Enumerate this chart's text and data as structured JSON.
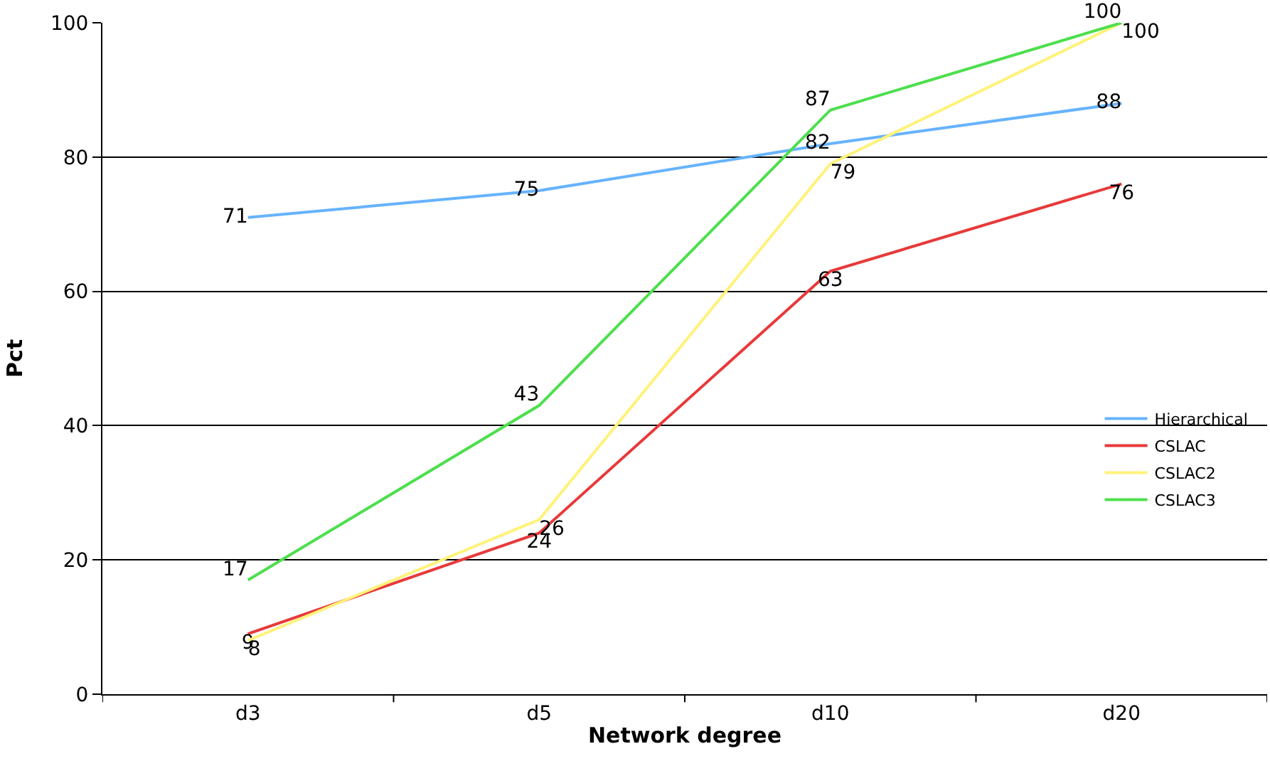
{
  "chart_data": {
    "type": "line",
    "xlabel": "Network degree",
    "ylabel": "Pct",
    "categories": [
      "d3",
      "d5",
      "d10",
      "d20"
    ],
    "series": [
      {
        "name": "Hierarchical",
        "color": "#66b3ff",
        "values": [
          71,
          75,
          82,
          88
        ]
      },
      {
        "name": "CSLAC",
        "color": "#e8393a",
        "values": [
          9,
          24,
          63,
          76
        ]
      },
      {
        "name": "CSLAC2",
        "color": "#fff27a",
        "values": [
          8,
          26,
          79,
          100
        ]
      },
      {
        "name": "CSLAC3",
        "color": "#4ddf4d",
        "values": [
          17,
          43,
          87,
          100
        ]
      }
    ],
    "ylim": [
      0,
      100
    ],
    "yticks": [
      0,
      20,
      40,
      60,
      80,
      100
    ],
    "grid": "y",
    "legend": "right",
    "marker": "none",
    "line_style": "solid",
    "data_labels": true
  }
}
